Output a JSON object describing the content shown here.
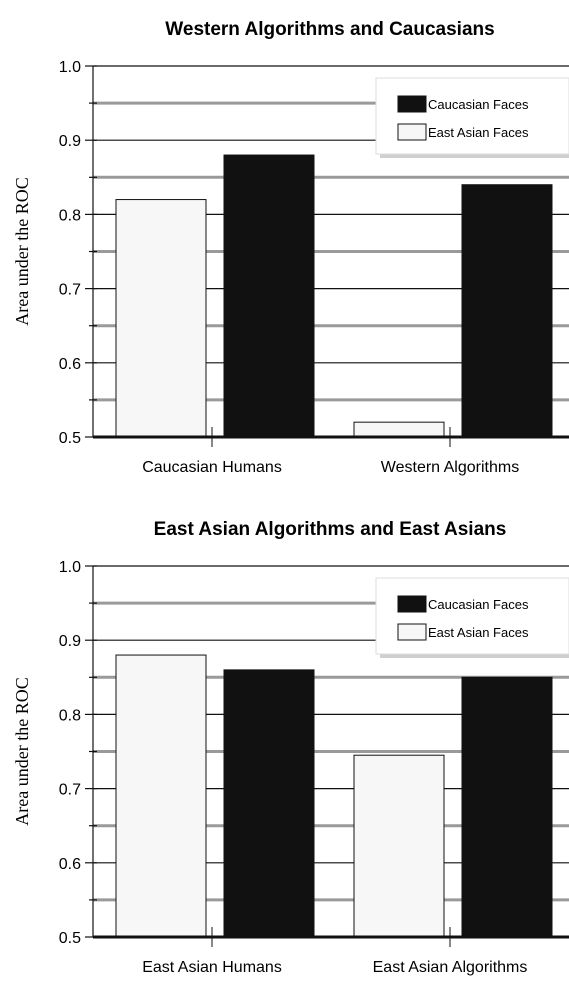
{
  "chart_data": [
    {
      "type": "bar",
      "title": "Western Algorithms and Caucasians",
      "ylabel": "Area under the ROC",
      "xlabel": "",
      "categories": [
        "Caucasian Humans",
        "Western Algorithms"
      ],
      "series": [
        {
          "name": "East Asian Faces",
          "values": [
            0.82,
            0.52
          ],
          "color": "#f7f7f7"
        },
        {
          "name": "Caucasian Faces",
          "values": [
            0.88,
            0.84
          ],
          "color": "#111111"
        }
      ],
      "ylim": [
        0.5,
        1.0
      ],
      "yticks": [
        "0.5",
        "0.6",
        "0.7",
        "0.8",
        "0.9",
        "1.0"
      ],
      "legend": {
        "position": "top-right",
        "entries": [
          "Caucasian Faces",
          "East Asian Faces"
        ]
      },
      "grid": true
    },
    {
      "type": "bar",
      "title": "East Asian Algorithms and East Asians",
      "ylabel": "Area under the ROC",
      "xlabel": "",
      "categories": [
        "East Asian Humans",
        "East Asian Algorithms"
      ],
      "series": [
        {
          "name": "East Asian Faces",
          "values": [
            0.88,
            0.745
          ],
          "color": "#f7f7f7"
        },
        {
          "name": "Caucasian Faces",
          "values": [
            0.86,
            0.85
          ],
          "color": "#111111"
        }
      ],
      "ylim": [
        0.5,
        1.0
      ],
      "yticks": [
        "0.5",
        "0.6",
        "0.7",
        "0.8",
        "0.9",
        "1.0"
      ],
      "legend": {
        "position": "top-right",
        "entries": [
          "Caucasian Faces",
          "East Asian Faces"
        ]
      },
      "grid": true
    }
  ]
}
